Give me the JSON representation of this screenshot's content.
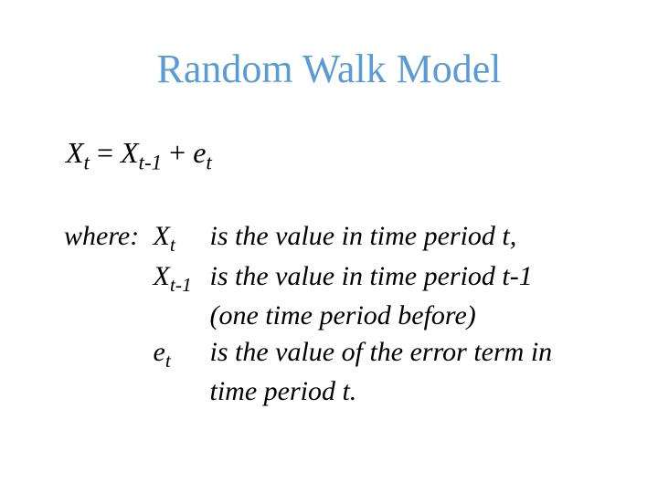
{
  "title": {
    "text": "Random Walk Model",
    "color": "#5a9bd5",
    "fontsize": 44
  },
  "equation": {
    "lhs_var": "X",
    "lhs_sub": "t",
    "eq": " = ",
    "rhs1_var": "X",
    "rhs1_sub": "t-1",
    "plus": " + ",
    "rhs2_var": "e",
    "rhs2_sub": "t",
    "fontsize": 32
  },
  "where": {
    "label": "where:",
    "fontsize": 30,
    "defs": [
      {
        "sym_var": "X",
        "sym_sub": "t",
        "desc": "is the value in time period t,",
        "cont": null
      },
      {
        "sym_var": "X",
        "sym_sub": "t-1",
        "desc": "is the value in time period t-1",
        "cont": "(one time period before)"
      },
      {
        "sym_var": "e",
        "sym_sub": "t",
        "desc": "is the value of the error term in",
        "cont": "time period t."
      }
    ]
  },
  "colors": {
    "title": "#5a9bd5",
    "body": "#000000",
    "background": "#ffffff"
  }
}
